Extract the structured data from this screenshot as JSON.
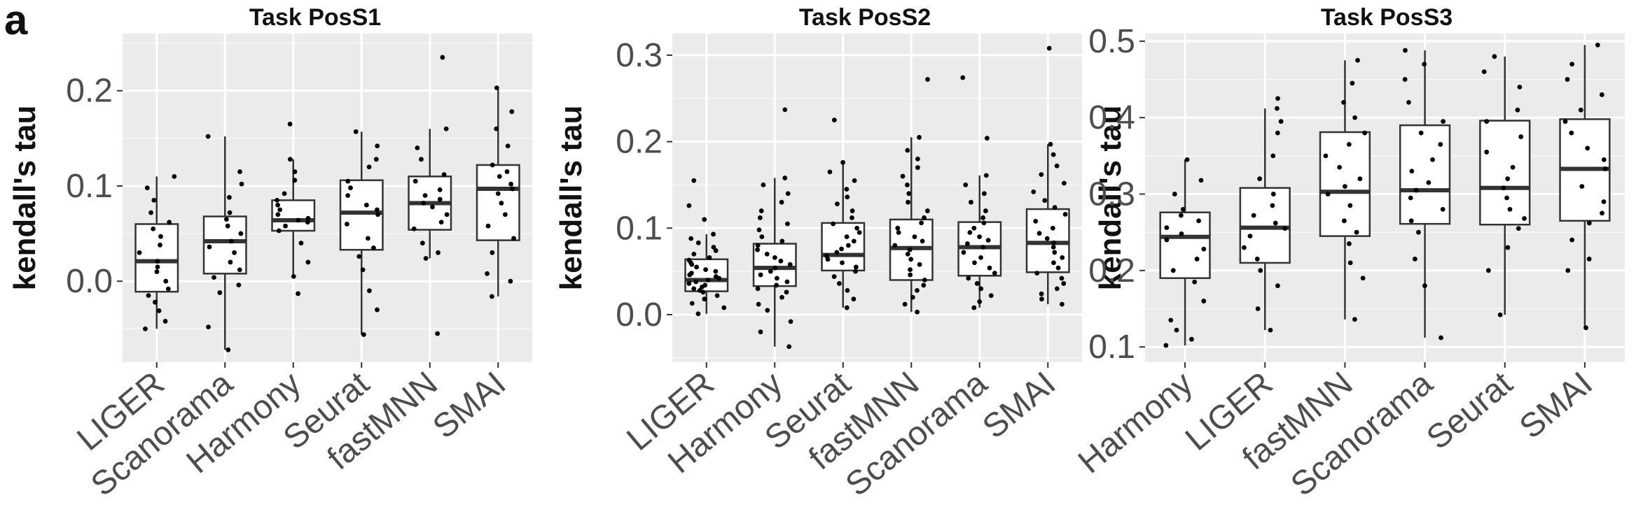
{
  "panel_label": "a",
  "chart_data": [
    {
      "type": "box",
      "title": "Task PosS1",
      "ylabel": "kendall's tau",
      "xlabel": "",
      "ylim": [
        -0.085,
        0.26
      ],
      "yticks": [
        0.0,
        0.1,
        0.2
      ],
      "ytick_labels": [
        "0.0",
        "0.1",
        "0.2"
      ],
      "grid": true,
      "categories": [
        "LIGER",
        "Scanorama",
        "Harmony",
        "Seurat",
        "fastMNN",
        "SMAI"
      ],
      "boxes": [
        {
          "q1": -0.011,
          "median": 0.021,
          "q3": 0.06,
          "whisker_low": -0.05,
          "whisker_high": 0.11
        },
        {
          "q1": 0.008,
          "median": 0.042,
          "q3": 0.068,
          "whisker_low": -0.072,
          "whisker_high": 0.152
        },
        {
          "q1": 0.053,
          "median": 0.064,
          "q3": 0.085,
          "whisker_low": 0.005,
          "whisker_high": 0.128
        },
        {
          "q1": 0.033,
          "median": 0.072,
          "q3": 0.106,
          "whisker_low": -0.056,
          "whisker_high": 0.157
        },
        {
          "q1": 0.054,
          "median": 0.082,
          "q3": 0.11,
          "whisker_low": 0.024,
          "whisker_high": 0.16
        },
        {
          "q1": 0.043,
          "median": 0.097,
          "q3": 0.122,
          "whisker_low": -0.016,
          "whisker_high": 0.203
        }
      ],
      "points": [
        [
          -0.05,
          -0.042,
          -0.031,
          -0.022,
          -0.015,
          -0.008,
          0.0,
          0.01,
          0.015,
          0.021,
          0.03,
          0.038,
          0.047,
          0.055,
          0.062,
          0.072,
          0.085,
          0.098,
          0.11
        ],
        [
          -0.072,
          -0.048,
          -0.012,
          -0.004,
          0.004,
          0.012,
          0.02,
          0.03,
          0.036,
          0.042,
          0.05,
          0.058,
          0.065,
          0.072,
          0.088,
          0.102,
          0.115,
          0.152
        ],
        [
          -0.013,
          0.005,
          0.02,
          0.04,
          0.053,
          0.058,
          0.062,
          0.064,
          0.066,
          0.07,
          0.075,
          0.08,
          0.085,
          0.092,
          0.106,
          0.115,
          0.128,
          0.165
        ],
        [
          -0.056,
          -0.03,
          -0.01,
          0.012,
          0.026,
          0.035,
          0.045,
          0.06,
          0.07,
          0.075,
          0.08,
          0.09,
          0.098,
          0.105,
          0.12,
          0.128,
          0.142,
          0.157
        ],
        [
          -0.055,
          0.024,
          0.03,
          0.04,
          0.055,
          0.062,
          0.07,
          0.078,
          0.082,
          0.086,
          0.09,
          0.096,
          0.105,
          0.112,
          0.128,
          0.14,
          0.16,
          0.235
        ],
        [
          -0.016,
          0.0,
          0.008,
          0.03,
          0.045,
          0.058,
          0.07,
          0.082,
          0.092,
          0.097,
          0.102,
          0.11,
          0.115,
          0.122,
          0.142,
          0.16,
          0.178,
          0.203
        ]
      ]
    },
    {
      "type": "box",
      "title": "Task PosS2",
      "ylabel": "kendall's tau",
      "xlabel": "",
      "ylim": [
        -0.055,
        0.325
      ],
      "yticks": [
        0.0,
        0.1,
        0.2,
        0.3
      ],
      "ytick_labels": [
        "0.0",
        "0.1",
        "0.2",
        "0.3"
      ],
      "grid": true,
      "categories": [
        "LIGER",
        "Harmony",
        "Seurat",
        "fastMNN",
        "Scanorama",
        "SMAI"
      ],
      "boxes": [
        {
          "q1": 0.027,
          "median": 0.04,
          "q3": 0.064,
          "whisker_low": 0.001,
          "whisker_high": 0.093
        },
        {
          "q1": 0.033,
          "median": 0.054,
          "q3": 0.082,
          "whisker_low": -0.037,
          "whisker_high": 0.158
        },
        {
          "q1": 0.051,
          "median": 0.069,
          "q3": 0.106,
          "whisker_low": 0.008,
          "whisker_high": 0.176
        },
        {
          "q1": 0.04,
          "median": 0.077,
          "q3": 0.11,
          "whisker_low": 0.003,
          "whisker_high": 0.205
        },
        {
          "q1": 0.045,
          "median": 0.078,
          "q3": 0.107,
          "whisker_low": 0.008,
          "whisker_high": 0.161
        },
        {
          "q1": 0.049,
          "median": 0.083,
          "q3": 0.122,
          "whisker_low": 0.012,
          "whisker_high": 0.197
        }
      ],
      "points": [
        [
          0.001,
          0.008,
          0.013,
          0.018,
          0.022,
          0.026,
          0.028,
          0.03,
          0.032,
          0.034,
          0.036,
          0.038,
          0.04,
          0.042,
          0.044,
          0.046,
          0.048,
          0.05,
          0.052,
          0.055,
          0.058,
          0.06,
          0.063,
          0.066,
          0.07,
          0.074,
          0.078,
          0.083,
          0.088,
          0.093,
          0.11,
          0.126,
          0.155
        ],
        [
          -0.037,
          -0.02,
          -0.008,
          0.005,
          0.012,
          0.02,
          0.026,
          0.03,
          0.034,
          0.038,
          0.042,
          0.046,
          0.05,
          0.054,
          0.058,
          0.062,
          0.066,
          0.07,
          0.075,
          0.08,
          0.085,
          0.09,
          0.098,
          0.105,
          0.112,
          0.12,
          0.13,
          0.14,
          0.15,
          0.158,
          0.237
        ],
        [
          0.008,
          0.018,
          0.028,
          0.036,
          0.044,
          0.05,
          0.055,
          0.06,
          0.064,
          0.068,
          0.072,
          0.076,
          0.08,
          0.085,
          0.09,
          0.095,
          0.1,
          0.105,
          0.112,
          0.12,
          0.128,
          0.136,
          0.145,
          0.155,
          0.165,
          0.176,
          0.225
        ],
        [
          0.003,
          0.012,
          0.02,
          0.028,
          0.034,
          0.04,
          0.046,
          0.052,
          0.058,
          0.064,
          0.07,
          0.075,
          0.08,
          0.085,
          0.09,
          0.095,
          0.1,
          0.106,
          0.112,
          0.12,
          0.13,
          0.14,
          0.15,
          0.16,
          0.17,
          0.18,
          0.19,
          0.205,
          0.272
        ],
        [
          0.008,
          0.015,
          0.022,
          0.03,
          0.036,
          0.042,
          0.048,
          0.054,
          0.06,
          0.066,
          0.072,
          0.078,
          0.082,
          0.086,
          0.09,
          0.095,
          0.1,
          0.106,
          0.112,
          0.12,
          0.13,
          0.14,
          0.15,
          0.161,
          0.204,
          0.274
        ],
        [
          0.012,
          0.018,
          0.024,
          0.03,
          0.036,
          0.042,
          0.048,
          0.054,
          0.06,
          0.066,
          0.072,
          0.078,
          0.083,
          0.088,
          0.094,
          0.1,
          0.108,
          0.116,
          0.124,
          0.132,
          0.142,
          0.152,
          0.162,
          0.172,
          0.185,
          0.197,
          0.308
        ]
      ]
    },
    {
      "type": "box",
      "title": "Task PosS3",
      "ylabel": "kendall's tau",
      "xlabel": "",
      "ylim": [
        0.08,
        0.51
      ],
      "yticks": [
        0.1,
        0.2,
        0.3,
        0.4,
        0.5
      ],
      "ytick_labels": [
        "0.1",
        "0.2",
        "0.3",
        "0.4",
        "0.5"
      ],
      "grid": true,
      "categories": [
        "Harmony",
        "LIGER",
        "fastMNN",
        "Scanorama",
        "Seurat",
        "SMAI"
      ],
      "boxes": [
        {
          "q1": 0.19,
          "median": 0.244,
          "q3": 0.276,
          "whisker_low": 0.102,
          "whisker_high": 0.345
        },
        {
          "q1": 0.21,
          "median": 0.256,
          "q3": 0.308,
          "whisker_low": 0.122,
          "whisker_high": 0.412
        },
        {
          "q1": 0.245,
          "median": 0.303,
          "q3": 0.381,
          "whisker_low": 0.136,
          "whisker_high": 0.475
        },
        {
          "q1": 0.261,
          "median": 0.305,
          "q3": 0.39,
          "whisker_low": 0.112,
          "whisker_high": 0.488
        },
        {
          "q1": 0.26,
          "median": 0.308,
          "q3": 0.396,
          "whisker_low": 0.142,
          "whisker_high": 0.48
        },
        {
          "q1": 0.265,
          "median": 0.333,
          "q3": 0.398,
          "whisker_low": 0.125,
          "whisker_high": 0.495
        }
      ],
      "points": [
        [
          0.102,
          0.11,
          0.122,
          0.135,
          0.16,
          0.185,
          0.2,
          0.215,
          0.228,
          0.24,
          0.248,
          0.256,
          0.265,
          0.272,
          0.28,
          0.3,
          0.318,
          0.345
        ],
        [
          0.122,
          0.15,
          0.18,
          0.2,
          0.215,
          0.23,
          0.245,
          0.255,
          0.262,
          0.272,
          0.285,
          0.3,
          0.32,
          0.35,
          0.38,
          0.395,
          0.412,
          0.425
        ],
        [
          0.136,
          0.19,
          0.21,
          0.235,
          0.25,
          0.265,
          0.285,
          0.3,
          0.31,
          0.32,
          0.335,
          0.35,
          0.365,
          0.38,
          0.4,
          0.42,
          0.445,
          0.475
        ],
        [
          0.112,
          0.18,
          0.215,
          0.25,
          0.265,
          0.28,
          0.295,
          0.305,
          0.315,
          0.33,
          0.345,
          0.365,
          0.38,
          0.395,
          0.42,
          0.45,
          0.47,
          0.488
        ],
        [
          0.142,
          0.2,
          0.23,
          0.255,
          0.268,
          0.28,
          0.295,
          0.308,
          0.32,
          0.335,
          0.355,
          0.375,
          0.395,
          0.41,
          0.44,
          0.46,
          0.48
        ],
        [
          0.125,
          0.2,
          0.215,
          0.24,
          0.262,
          0.275,
          0.29,
          0.31,
          0.333,
          0.345,
          0.36,
          0.38,
          0.395,
          0.41,
          0.43,
          0.45,
          0.47,
          0.495
        ]
      ]
    }
  ]
}
